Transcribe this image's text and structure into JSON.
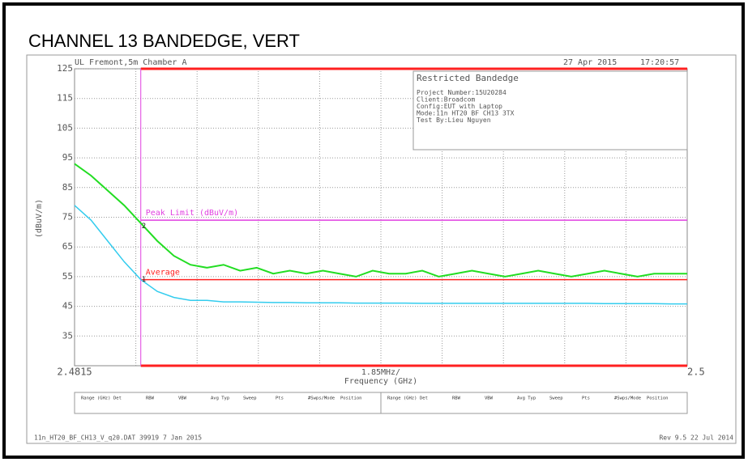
{
  "chart_data": {
    "type": "line",
    "title": "CHANNEL 13 BANDEDGE, VERT",
    "site": "UL Fremont,5m Chamber A",
    "date": "27 Apr 2015",
    "time": "17:20:57",
    "info_box": [
      "Restricted Bandedge",
      "Project Number:15U20284",
      "Client:Broadcom",
      "Config:EUT with Laptop",
      "Mode:11n HT20 BF CH13 3TX",
      "Test By:Lieu Nguyen"
    ],
    "y_label": "(dBuV/m)",
    "x_label": "Frequency (GHz)",
    "x_span_label": "1.85MHz/",
    "footer_left": "11n_HT20_BF_CH13_V_q20.DAT 39919 7 Jan 2015",
    "footer_right": "Rev 9.5 22 Jul 2014",
    "table_columns": [
      "Range (GHz)",
      "Det",
      "RBW",
      "VBW",
      "Avg Typ",
      "Sweep",
      "Pts",
      "#Swps/Mode",
      "Position"
    ],
    "xlim": [
      2.4815,
      2.5
    ],
    "xticks": [
      2.4815,
      2.5
    ],
    "ylim": [
      25,
      125
    ],
    "yticks": [
      35,
      45,
      55,
      65,
      75,
      85,
      95,
      105,
      115,
      125
    ],
    "grid": true,
    "band_edge": 2.4835,
    "reference_lines": [
      {
        "label": "Peak Limit (dBuV/m)",
        "value": 74,
        "color": "#e040e0"
      },
      {
        "label": "Average",
        "value": 54,
        "color": "#ff2020"
      }
    ],
    "markers": [
      {
        "label": "1",
        "x": 2.4835,
        "y": 54
      },
      {
        "label": "2",
        "x": 2.4835,
        "y": 72
      }
    ],
    "x": [
      2.4815,
      2.482,
      2.4825,
      2.483,
      2.4835,
      2.484,
      2.4845,
      2.485,
      2.4855,
      2.486,
      2.4865,
      2.487,
      2.4875,
      2.488,
      2.4885,
      2.489,
      2.4895,
      2.49,
      2.4905,
      2.491,
      2.4915,
      2.492,
      2.4925,
      2.493,
      2.4935,
      2.494,
      2.4945,
      2.495,
      2.4955,
      2.496,
      2.4965,
      2.497,
      2.4975,
      2.498,
      2.4985,
      2.499,
      2.4995,
      2.5
    ],
    "series": [
      {
        "color": "#22dd22",
        "values": [
          93,
          89,
          84,
          79,
          73,
          67,
          62,
          59,
          58,
          59,
          57,
          58,
          56,
          57,
          56,
          57,
          56,
          55,
          57,
          56,
          56,
          57,
          55,
          56,
          57,
          56,
          55,
          56,
          57,
          56,
          55,
          56,
          57,
          56,
          55,
          56,
          56,
          56
        ]
      },
      {
        "color": "#33ccee",
        "values": [
          79,
          74,
          67,
          60,
          54,
          50,
          48,
          47,
          47,
          46.5,
          46.5,
          46.4,
          46.3,
          46.3,
          46.2,
          46.2,
          46.2,
          46.1,
          46.1,
          46.1,
          46.1,
          46,
          46,
          46,
          46,
          46,
          46,
          46,
          46,
          46,
          46,
          46,
          45.9,
          45.9,
          45.9,
          45.9,
          45.8,
          45.8
        ]
      }
    ]
  }
}
